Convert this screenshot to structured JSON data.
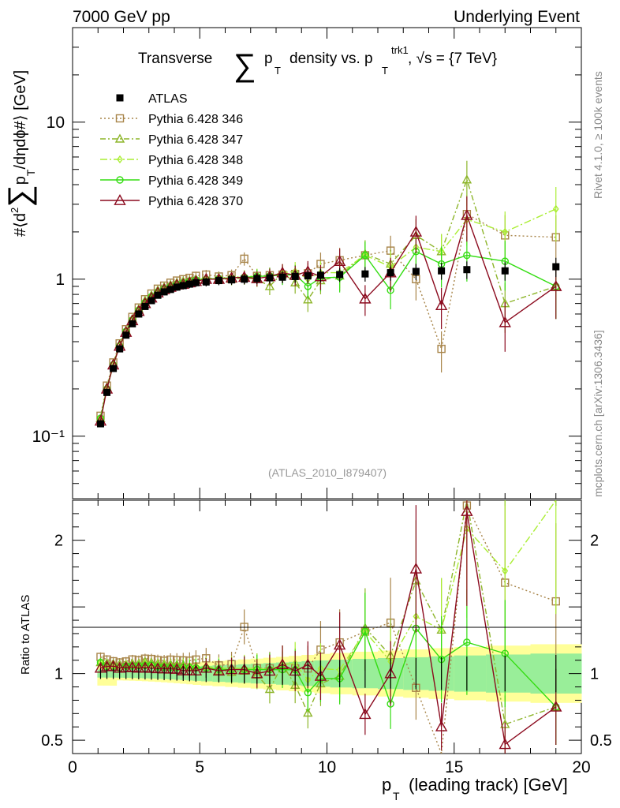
{
  "header": {
    "left": "7000 GeV pp",
    "right": "Underlying Event"
  },
  "side_labels": {
    "right_top": "Rivet 4.1.0, ≥ 100k events",
    "right_bottom": "mcplots.cern.ch [arXiv:1306.3436]"
  },
  "analysis_id": "(ATLAS_2010_I879407)",
  "title": {
    "part1": "Transverse",
    "sigma": "∑",
    "p": "p",
    "T": "T",
    "part2": "density vs. p",
    "trk": "trk1",
    "part3": ", √s = {7 TeV}"
  },
  "ylabel_main": {
    "prefix": "#⟨d",
    "sup2": "2",
    "sigma": "∑",
    "p": "p",
    "T": "T",
    "suffix": "/dηdϕ#⟩ [GeV]"
  },
  "ylabel_ratio": "Ratio to ATLAS",
  "xlabel": {
    "p": "p",
    "T": "T",
    "rest": "(leading track) [GeV]"
  },
  "colors": {
    "ATLAS": "#000000",
    "p346": "#a8854a",
    "p347": "#8db52a",
    "p348": "#aaee33",
    "p349": "#33dd11",
    "p370": "#8b0a1e",
    "band_yellow": "#ffff99",
    "band_green": "#99ee99"
  },
  "chart_data": {
    "type": "scatter",
    "x_axis": {
      "label": "p_T (leading track) [GeV]",
      "range": [
        0,
        20
      ],
      "ticks": [
        "0",
        "5",
        "10",
        "15",
        "20"
      ]
    },
    "main_panel": {
      "y_scale": "log",
      "y_range": [
        0.04,
        40
      ],
      "y_ticks": [
        "10⁻¹",
        "1",
        "10"
      ]
    },
    "ratio_panel": {
      "y_range": [
        0.4,
        2.3
      ],
      "y_ticks": [
        "0.5",
        "1",
        "2"
      ]
    },
    "x": [
      1.1,
      1.35,
      1.6,
      1.85,
      2.1,
      2.35,
      2.6,
      2.85,
      3.1,
      3.35,
      3.6,
      3.85,
      4.1,
      4.35,
      4.6,
      4.85,
      5.25,
      5.75,
      6.25,
      6.75,
      7.25,
      7.75,
      8.25,
      8.75,
      9.25,
      9.75,
      10.5,
      11.5,
      12.5,
      13.5,
      14.5,
      15.5,
      17.0,
      19.0
    ],
    "series": [
      {
        "name": "ATLAS",
        "marker": "square-filled",
        "values": [
          0.12,
          0.19,
          0.27,
          0.36,
          0.44,
          0.52,
          0.6,
          0.67,
          0.73,
          0.79,
          0.83,
          0.86,
          0.89,
          0.91,
          0.93,
          0.95,
          0.96,
          0.98,
          0.99,
          1.0,
          1.01,
          1.02,
          1.03,
          1.04,
          1.05,
          1.06,
          1.07,
          1.08,
          1.1,
          1.12,
          1.13,
          1.15,
          1.13,
          1.2
        ]
      },
      {
        "name": "Pythia 6.428 346",
        "marker": "square-open",
        "line": "dotted",
        "values": [
          0.135,
          0.21,
          0.295,
          0.39,
          0.48,
          0.575,
          0.66,
          0.745,
          0.81,
          0.87,
          0.91,
          0.95,
          0.98,
          1.0,
          1.02,
          1.05,
          1.07,
          1.04,
          1.06,
          1.35,
          1.05,
          1.06,
          1.07,
          1.08,
          1.09,
          1.25,
          1.32,
          1.42,
          1.52,
          1.0,
          0.36,
          2.6,
          1.9,
          1.85
        ]
      },
      {
        "name": "Pythia 6.428 347",
        "marker": "triangle-open",
        "line": "dashdot",
        "values": [
          0.13,
          0.205,
          0.29,
          0.385,
          0.47,
          0.56,
          0.645,
          0.73,
          0.79,
          0.85,
          0.89,
          0.92,
          0.95,
          0.97,
          0.98,
          1.0,
          1.01,
          1.0,
          1.0,
          1.02,
          1.0,
          0.9,
          1.1,
          0.95,
          0.74,
          0.98,
          1.05,
          1.45,
          1.25,
          1.9,
          1.5,
          4.3,
          0.7,
          0.9
        ]
      },
      {
        "name": "Pythia 6.428 348",
        "marker": "diamond-open",
        "line": "dashdot",
        "values": [
          0.13,
          0.2,
          0.285,
          0.38,
          0.47,
          0.555,
          0.64,
          0.72,
          0.78,
          0.84,
          0.88,
          0.91,
          0.94,
          0.96,
          0.98,
          1.0,
          1.01,
          1.02,
          1.03,
          1.04,
          1.05,
          1.05,
          1.1,
          1.12,
          1.0,
          1.1,
          1.1,
          1.42,
          1.2,
          1.6,
          1.5,
          2.4,
          2.0,
          2.8
        ]
      },
      {
        "name": "Pythia 6.428 349",
        "marker": "circle-open",
        "line": "solid",
        "values": [
          0.13,
          0.2,
          0.285,
          0.375,
          0.465,
          0.55,
          0.635,
          0.71,
          0.775,
          0.83,
          0.87,
          0.9,
          0.93,
          0.95,
          0.97,
          0.99,
          1.0,
          1.01,
          1.02,
          1.03,
          1.04,
          1.05,
          1.06,
          1.07,
          0.9,
          1.02,
          1.03,
          1.42,
          0.85,
          1.5,
          1.25,
          1.42,
          1.3,
          0.9
        ]
      },
      {
        "name": "Pythia 6.428 370",
        "marker": "triangle-open-large",
        "line": "solid",
        "values": [
          0.125,
          0.2,
          0.285,
          0.375,
          0.46,
          0.545,
          0.625,
          0.7,
          0.76,
          0.82,
          0.86,
          0.89,
          0.92,
          0.93,
          0.95,
          0.97,
          1.0,
          1.0,
          1.02,
          1.03,
          1.01,
          1.04,
          1.1,
          1.06,
          1.12,
          1.04,
          1.3,
          0.75,
          1.1,
          2.0,
          0.68,
          2.55,
          0.53,
          0.9
        ]
      }
    ],
    "legend": [
      "ATLAS",
      "Pythia 6.428 346",
      "Pythia 6.428 347",
      "Pythia 6.428 348",
      "Pythia 6.428 349",
      "Pythia 6.428 370"
    ]
  }
}
